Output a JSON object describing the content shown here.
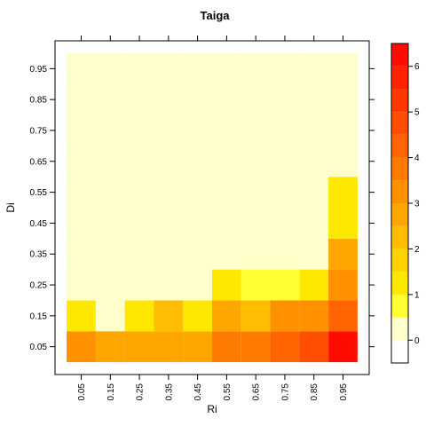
{
  "chart_data": {
    "type": "heatmap",
    "title": "Taiga",
    "xlabel": "Ri",
    "ylabel": "Di",
    "x": [
      "0.05",
      "0.15",
      "0.25",
      "0.35",
      "0.45",
      "0.55",
      "0.65",
      "0.75",
      "0.85",
      "0.95"
    ],
    "y": [
      "0.05",
      "0.15",
      "0.25",
      "0.35",
      "0.45",
      "0.55",
      "0.65",
      "0.75",
      "0.85",
      "0.95"
    ],
    "values": [
      [
        3.2,
        2.6,
        2.6,
        2.6,
        2.6,
        3.6,
        3.6,
        4.2,
        4.9,
        6.3
      ],
      [
        1.3,
        0,
        1.3,
        2.1,
        1.3,
        2.6,
        2.1,
        3.0,
        3.0,
        4.3
      ],
      [
        0.2,
        0,
        0.1,
        0,
        0,
        1.0,
        0.9,
        0.9,
        1.1,
        3.3
      ],
      [
        0,
        0.1,
        0.1,
        0.1,
        0,
        0,
        0,
        0.1,
        0,
        2.6
      ],
      [
        0,
        0,
        0,
        0,
        0,
        0,
        0,
        0.1,
        0.1,
        1.3
      ],
      [
        0.1,
        0,
        0,
        0,
        0,
        0,
        0,
        0,
        0,
        1.3
      ],
      [
        0,
        0,
        0.1,
        0,
        0,
        0,
        0,
        0.1,
        0,
        0
      ],
      [
        0,
        0,
        0,
        0,
        0,
        0,
        0,
        0,
        0,
        0.1
      ],
      [
        0,
        0,
        0,
        0,
        0,
        0,
        0,
        0,
        0,
        0
      ],
      [
        0,
        0,
        0,
        0,
        0,
        0,
        0,
        0,
        0,
        0
      ]
    ],
    "colorbar": {
      "ticks": [
        "0",
        "1",
        "2",
        "3",
        "4",
        "5",
        "6"
      ],
      "min": -0.5,
      "max": 6.5,
      "colors": [
        "#FFFFFF",
        "#FFFFCC",
        "#FFFF33",
        "#FFE800",
        "#FFD200",
        "#FFBC00",
        "#FFA600",
        "#FF9000",
        "#FF7A00",
        "#FF6400",
        "#FF4E00",
        "#FF3800",
        "#FF2200",
        "#FF0C00"
      ]
    }
  }
}
